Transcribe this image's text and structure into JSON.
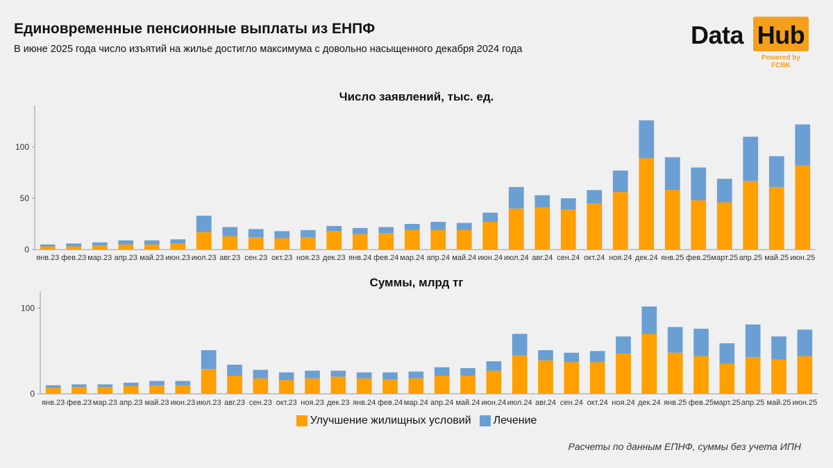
{
  "header": {
    "title": "Единовременные пенсионные выплаты из ЕНПФ",
    "subtitle": "В июне 2025 года число изъятий на жилье достигло максимума с довольно насыщенного декабря 2024 года"
  },
  "logo": {
    "word1": "Data",
    "word2": "Hub",
    "powered": "Powered by FCBK"
  },
  "colors": {
    "housing": "#ff9f00",
    "treatment": "#6a9fd4",
    "axis": "#999999",
    "background": "#f0f0f0"
  },
  "legend": {
    "housing": "Улучшение жилищных условий",
    "treatment": "Лечение"
  },
  "footnote": "Расчеты по данным ЕПНФ, суммы без учета ИПН",
  "chart_data": [
    {
      "type": "bar",
      "stacked": true,
      "title": "Число заявлений, тыс. ед.",
      "categories": [
        "янв.23",
        "фев.23",
        "мар.23",
        "апр.23",
        "май.23",
        "июн.23",
        "июл.23",
        "авг.23",
        "сен.23",
        "окт.23",
        "ноя.23",
        "дек.23",
        "янв.24",
        "фев.24",
        "мар.24",
        "апр.24",
        "май.24",
        "июн.24",
        "июл.24",
        "авг.24",
        "сен.24",
        "окт.24",
        "ноя.24",
        "дек.24",
        "янв.25",
        "фев.25",
        "март.25",
        "апр.25",
        "май.25",
        "июн.25"
      ],
      "series": [
        {
          "name": "Улучшение жилищных условий",
          "values": [
            3,
            3,
            4,
            5,
            5,
            6,
            17,
            13,
            12,
            11,
            12,
            18,
            15,
            16,
            19,
            19,
            19,
            27,
            40,
            41,
            39,
            45,
            56,
            89,
            58,
            48,
            46,
            67,
            61,
            82
          ]
        },
        {
          "name": "Лечение",
          "values": [
            2,
            3,
            3,
            4,
            4,
            4,
            16,
            9,
            8,
            7,
            7,
            5,
            6,
            6,
            6,
            8,
            7,
            9,
            21,
            12,
            11,
            13,
            21,
            37,
            32,
            32,
            23,
            43,
            30,
            40
          ]
        }
      ],
      "yticks": [
        0,
        50,
        100
      ],
      "ylim": [
        0,
        140
      ],
      "grid": false
    },
    {
      "type": "bar",
      "stacked": true,
      "title": "Суммы, млрд тг",
      "categories": [
        "янв.23",
        "фев.23",
        "мар.23",
        "апр.23",
        "май.23",
        "июн.23",
        "июл.23",
        "авг.23",
        "сен.23",
        "окт.23",
        "ноя.23",
        "дек.23",
        "янв.24",
        "фев.24",
        "мар.24",
        "апр.24",
        "май.24",
        "июн.24",
        "июл.24",
        "авг.24",
        "сен.24",
        "окт.24",
        "ноя.24",
        "дек.24",
        "янв.25",
        "фев.25",
        "март.25",
        "апр.25",
        "май.25",
        "июн.25"
      ],
      "series": [
        {
          "name": "Улучшение жилищных условий",
          "values": [
            7,
            8,
            8,
            9,
            10,
            10,
            29,
            21,
            18,
            16,
            18,
            20,
            18,
            17,
            18,
            21,
            21,
            27,
            45,
            39,
            37,
            37,
            47,
            70,
            48,
            44,
            35,
            43,
            40,
            44
          ]
        },
        {
          "name": "Лечение",
          "values": [
            3,
            3,
            3,
            4,
            5,
            5,
            22,
            13,
            10,
            9,
            9,
            7,
            7,
            8,
            8,
            10,
            9,
            11,
            25,
            12,
            11,
            13,
            20,
            32,
            30,
            32,
            24,
            38,
            27,
            31
          ]
        }
      ],
      "yticks": [
        0,
        100
      ],
      "ylim": [
        0,
        120
      ],
      "grid": false
    }
  ]
}
